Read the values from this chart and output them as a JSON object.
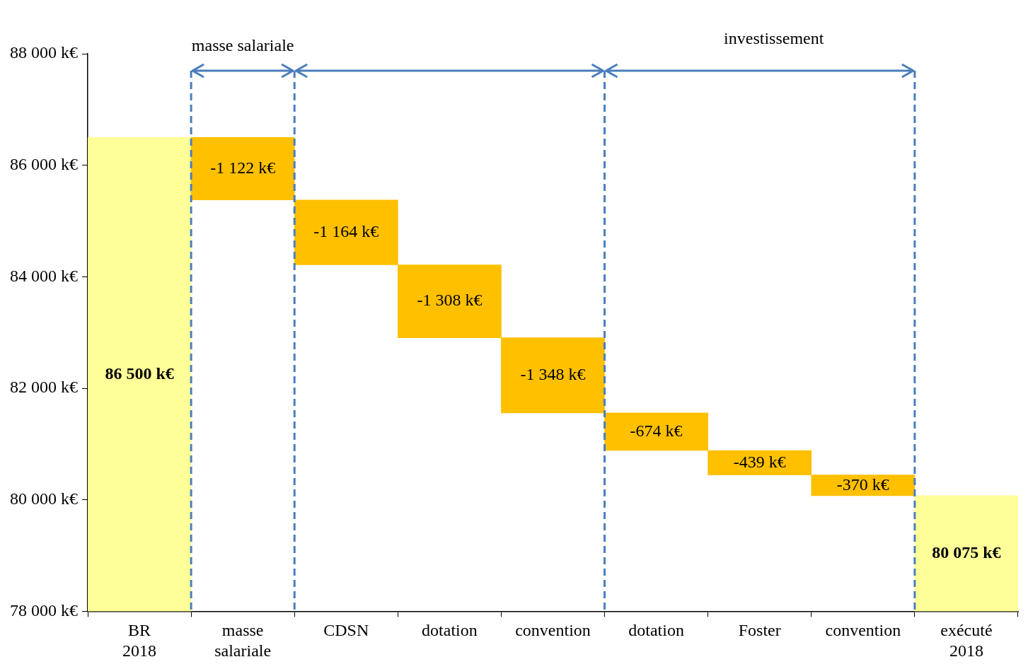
{
  "chart_data": {
    "type": "bar",
    "categories": [
      "BR 2018",
      "masse salariale",
      "CDSN",
      "dotation",
      "convention",
      "dotation",
      "Foster",
      "convention",
      "exécuté 2018"
    ],
    "base": [
      78000,
      86500,
      85378,
      84214,
      82906,
      81558,
      80884,
      80445,
      78000
    ],
    "values": [
      8500,
      -1122,
      -1164,
      -1308,
      -1348,
      -674,
      -439,
      -370,
      2075
    ],
    "colors": [
      "#ffff99",
      "#ffc000",
      "#ffc000",
      "#ffc000",
      "#ffc000",
      "#ffc000",
      "#ffc000",
      "#ffc000",
      "#ffff99"
    ],
    "value_labels": [
      "86 500 k€",
      "-1 122 k€",
      "-1 164 k€",
      "-1 308 k€",
      "-1 348 k€",
      "-674 k€",
      "-439 k€",
      "-370 k€",
      "80 075 k€"
    ],
    "ylim": [
      78000,
      88000
    ],
    "yticks": [
      {
        "value": 78000,
        "label": "78 000 k€"
      },
      {
        "value": 80000,
        "label": "80 000 k€"
      },
      {
        "value": 82000,
        "label": "82 000 k€"
      },
      {
        "value": 84000,
        "label": "84 000 k€"
      },
      {
        "value": 86000,
        "label": "86 000 k€"
      },
      {
        "value": 88000,
        "label": "88 000 k€"
      }
    ],
    "annotations": [
      "masse salariale",
      "investissement"
    ],
    "grid": false,
    "legend": false
  }
}
